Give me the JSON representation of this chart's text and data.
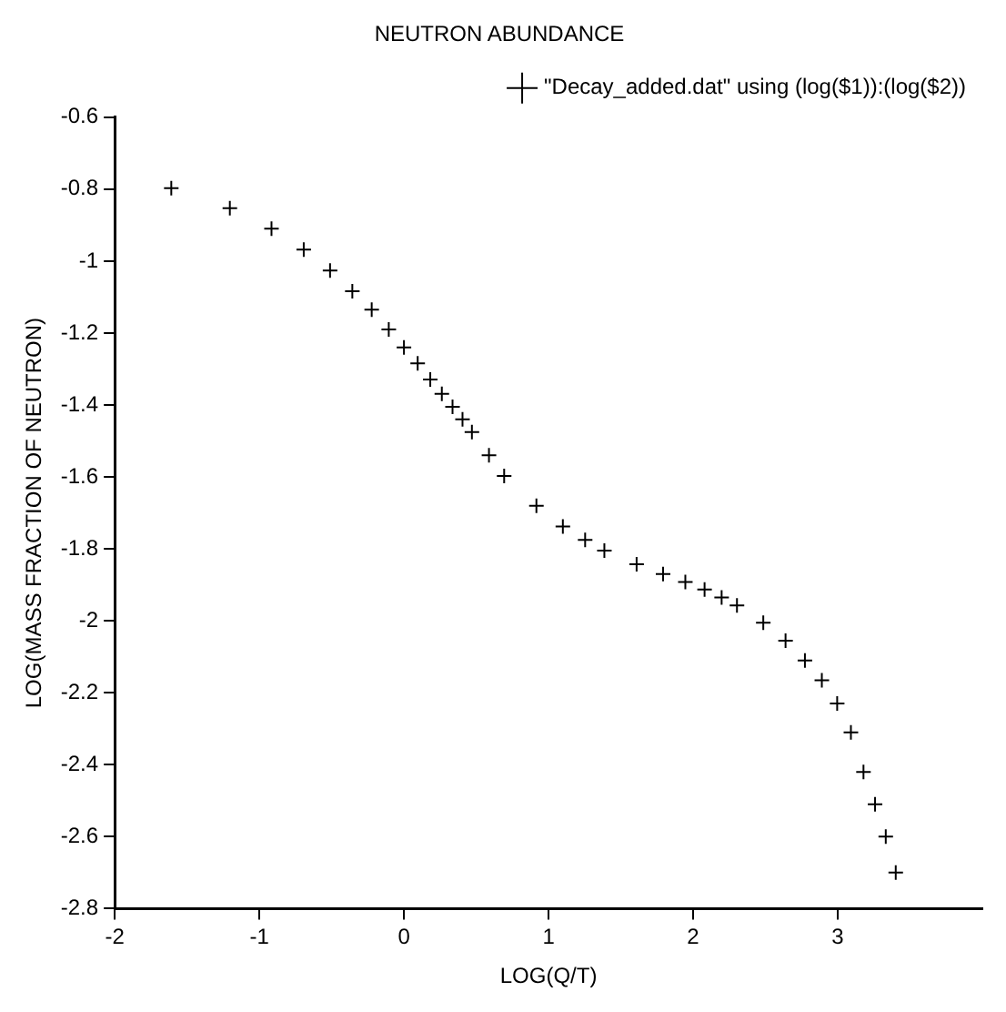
{
  "chart_data": {
    "type": "scatter",
    "title": "NEUTRON ABUNDANCE",
    "xlabel": "LOG(Q/T)",
    "ylabel": "LOG(MASS FRACTION OF NEUTRON)",
    "xlim": [
      -2,
      4
    ],
    "xticks": [
      -2,
      -1,
      0,
      1,
      2,
      3
    ],
    "ylim": [
      -2.8,
      -0.6
    ],
    "yticks": [
      -2.8,
      -2.6,
      -2.4,
      -2.2,
      -2,
      -1.8,
      -1.6,
      -1.4,
      -1.2,
      -1,
      -0.8,
      -0.6
    ],
    "legend": "top right",
    "marker": "cross",
    "grid": false,
    "series": [
      {
        "name": "\"Decay_added.dat\" using (log($1)):(log($2))",
        "color": "#000000",
        "x": [
          -1.609,
          -1.204,
          -0.916,
          -0.693,
          -0.511,
          -0.357,
          -0.223,
          -0.105,
          0,
          0.095,
          0.182,
          0.262,
          0.336,
          0.405,
          0.47,
          0.588,
          0.693,
          0.916,
          1.099,
          1.253,
          1.386,
          1.609,
          1.792,
          1.946,
          2.079,
          2.197,
          2.303,
          2.485,
          2.639,
          2.773,
          2.89,
          2.996,
          3.091,
          3.178,
          3.258,
          3.332,
          3.401
        ],
        "values": [
          -0.797,
          -0.853,
          -0.91,
          -0.968,
          -1.026,
          -1.084,
          -1.135,
          -1.19,
          -1.24,
          -1.284,
          -1.329,
          -1.369,
          -1.405,
          -1.44,
          -1.475,
          -1.54,
          -1.597,
          -1.68,
          -1.738,
          -1.775,
          -1.805,
          -1.843,
          -1.87,
          -1.892,
          -1.913,
          -1.935,
          -1.957,
          -2.005,
          -2.055,
          -2.11,
          -2.165,
          -2.23,
          -2.31,
          -2.42,
          -2.51,
          -2.6,
          -2.7
        ]
      }
    ]
  }
}
